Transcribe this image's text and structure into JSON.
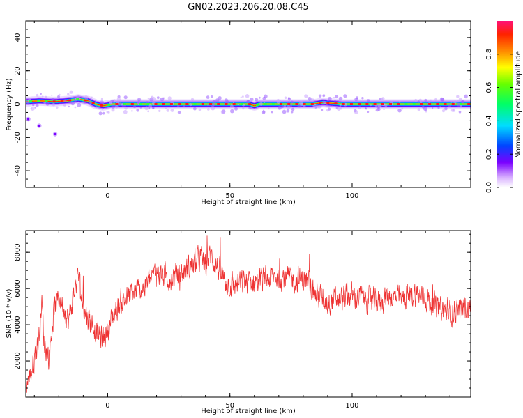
{
  "title": "GN02.2023.206.20.08.C45",
  "colors": {
    "snr_line": "#ee3333",
    "axes": "#000000",
    "background": "#ffffff"
  },
  "chart_data": [
    {
      "type": "heatmap",
      "name": "spectrogram",
      "xlabel": "Height of straight line (km)",
      "ylabel": "Frequency (Hz)",
      "xlim": [
        -33.5,
        148.5
      ],
      "ylim": [
        -50,
        50
      ],
      "xticks": [
        0,
        50,
        100
      ],
      "xtick_labels": [
        "0",
        "50",
        "100"
      ],
      "yticks": [
        40,
        20,
        0,
        -20,
        -40
      ],
      "ytick_labels": [
        "40",
        "20",
        "0",
        "-20",
        "-40"
      ],
      "grid": false,
      "colormap": "rainbow (purple→red)",
      "colorbar": {
        "label": "Normalized spectral amplitude",
        "range": [
          0,
          1
        ],
        "ticks": [
          0.0,
          0.2,
          0.4,
          0.6,
          0.8
        ],
        "tick_labels": [
          "0.0",
          "0.2",
          "0.4",
          "0.6",
          "0.8"
        ]
      },
      "ridge": {
        "x": [
          -33,
          -28,
          -22,
          -17,
          -12,
          -8,
          -5,
          -2,
          2,
          10,
          20,
          30,
          40,
          50,
          58,
          60,
          62,
          70,
          80,
          84,
          88,
          92,
          96,
          100,
          105,
          110,
          120,
          130,
          140,
          148
        ],
        "freq": [
          1.5,
          2,
          1.5,
          2,
          3,
          2,
          0,
          -1,
          0,
          0,
          0,
          0,
          0,
          0,
          0,
          -1,
          0,
          0,
          0,
          0,
          1,
          0.5,
          0,
          0,
          0,
          0,
          0,
          0,
          0,
          0
        ]
      },
      "scatter_points": {
        "x": [
          -32.5,
          -28,
          -21.5
        ],
        "freq": [
          -9,
          -13,
          -18
        ]
      }
    },
    {
      "type": "line",
      "name": "snr",
      "xlabel": "Height of straight line (km)",
      "ylabel": "SNR (10 * v/v)",
      "xlim": [
        -33.5,
        148.5
      ],
      "ylim": [
        0,
        9200
      ],
      "xticks": [
        0,
        50,
        100
      ],
      "xtick_labels": [
        "0",
        "50",
        "100"
      ],
      "yticks": [
        2000,
        4000,
        6000,
        8000
      ],
      "ytick_labels": [
        "2000",
        "4000",
        "6000",
        "8000"
      ],
      "grid": false,
      "series": [
        {
          "trend": {
            "x": [
              -33.5,
              -31,
              -28,
              -27,
              -26,
              -24,
              -22,
              -20,
              -18,
              -16,
              -14,
              -12,
              -10,
              -8,
              -6,
              -4,
              -2,
              0,
              2,
              5,
              10,
              15,
              20,
              25,
              30,
              35,
              38,
              40,
              42,
              45,
              48,
              50,
              55,
              60,
              65,
              70,
              75,
              80,
              83,
              85,
              90,
              95,
              100,
              105,
              110,
              115,
              120,
              125,
              130,
              135,
              140,
              145,
              148.5
            ],
            "y": [
              600,
              1500,
              3400,
              5400,
              3000,
              2200,
              4800,
              5500,
              5100,
              4200,
              5600,
              6800,
              4900,
              4400,
              4000,
              3500,
              3200,
              3700,
              4400,
              5200,
              5700,
              6100,
              6900,
              6600,
              6800,
              7300,
              7700,
              7300,
              7800,
              7200,
              6400,
              6200,
              6300,
              6400,
              6500,
              6700,
              6500,
              6500,
              6200,
              5700,
              5300,
              5400,
              5600,
              5500,
              5200,
              5600,
              5400,
              5700,
              5500,
              4900,
              4700,
              4900,
              5000
            ]
          },
          "noise_amplitude": 450
        }
      ]
    }
  ],
  "axes_labels": {
    "top_x": "Height of straight line (km)",
    "top_y": "Frequency (Hz)",
    "bottom_x": "Height of straight line (km)",
    "bottom_y": "SNR (10 * v/v)",
    "colorbar": "Normalized spectral amplitude"
  }
}
